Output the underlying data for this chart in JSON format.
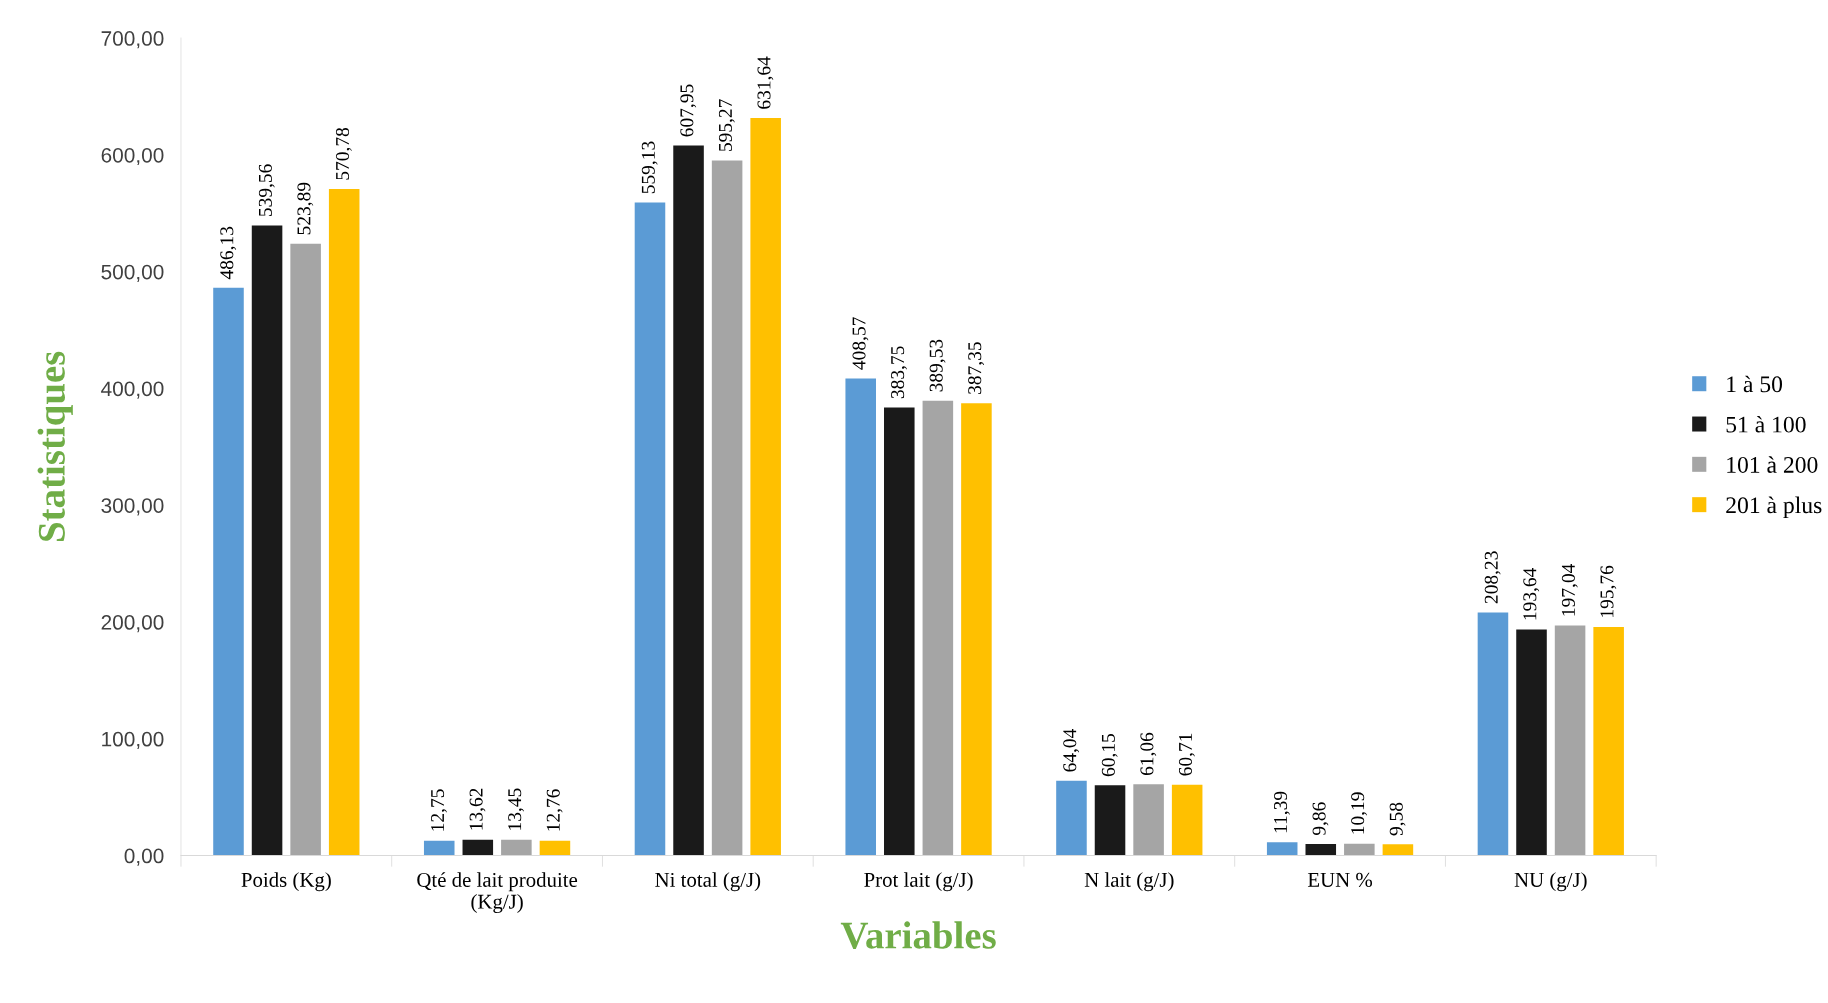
{
  "chart_data": {
    "type": "bar",
    "xlabel": "Variables",
    "ylabel": "Statistiques",
    "categories": [
      "Poids (Kg)",
      "Qté de lait produite\n(Kg/J)",
      "Ni total (g/J)",
      "Prot lait (g/J)",
      "N lait (g/J)",
      "EUN %",
      "NU (g/J)"
    ],
    "series": [
      {
        "name": "1 à 50",
        "color": "#5b9bd5",
        "values": [
          486.13,
          12.75,
          559.13,
          408.57,
          64.04,
          11.39,
          208.23
        ],
        "value_labels": [
          "486,13",
          "12,75",
          "559,13",
          "408,57",
          "64,04",
          "11,39",
          "208,23"
        ]
      },
      {
        "name": "51 à 100",
        "color": "#1a1a1a",
        "values": [
          539.56,
          13.62,
          607.95,
          383.75,
          60.15,
          9.86,
          193.64
        ],
        "value_labels": [
          "539,56",
          "13,62",
          "607,95",
          "383,75",
          "60,15",
          "9,86",
          "193,64"
        ]
      },
      {
        "name": "101 à 200",
        "color": "#a5a5a5",
        "values": [
          523.89,
          13.45,
          595.27,
          389.53,
          61.06,
          10.19,
          197.04
        ],
        "value_labels": [
          "523,89",
          "13,45",
          "595,27",
          "389,53",
          "61,06",
          "10,19",
          "197,04"
        ]
      },
      {
        "name": "201 à plus",
        "color": "#ffc000",
        "values": [
          570.78,
          12.76,
          631.64,
          387.35,
          60.71,
          9.58,
          195.76
        ],
        "value_labels": [
          "570,78",
          "12,76",
          "631,64",
          "387,35",
          "60,71",
          "9,58",
          "195,76"
        ]
      }
    ],
    "ylim": [
      0,
      700
    ],
    "yticks": [
      {
        "value": 0,
        "label": "0,00"
      },
      {
        "value": 100,
        "label": "100,00"
      },
      {
        "value": 200,
        "label": "200,00"
      },
      {
        "value": 300,
        "label": "300,00"
      },
      {
        "value": 400,
        "label": "400,00"
      },
      {
        "value": 500,
        "label": "500,00"
      },
      {
        "value": 600,
        "label": "600,00"
      },
      {
        "value": 700,
        "label": "700,00"
      }
    ],
    "grid": false,
    "legend": "right"
  }
}
